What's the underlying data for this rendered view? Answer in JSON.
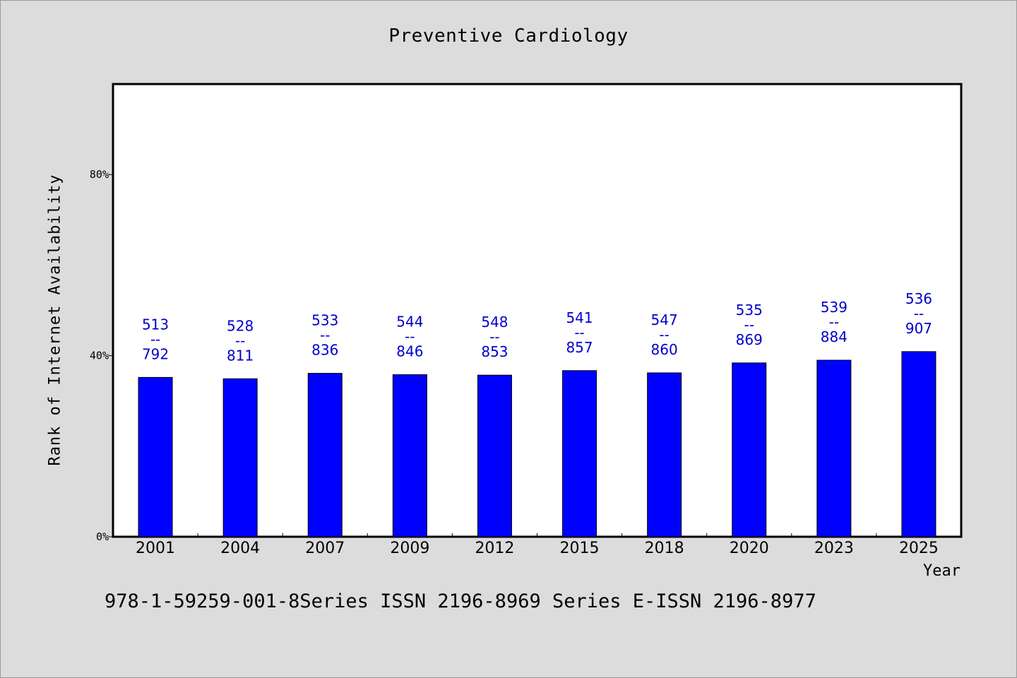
{
  "chart_data": {
    "type": "bar",
    "title": "Preventive Cardiology",
    "xlabel": "Year",
    "ylabel": "Rank of Internet Availability",
    "categories": [
      "2001",
      "2004",
      "2007",
      "2009",
      "2012",
      "2015",
      "2018",
      "2020",
      "2023",
      "2025"
    ],
    "values": [
      0.352,
      0.349,
      0.361,
      0.358,
      0.357,
      0.367,
      0.362,
      0.384,
      0.39,
      0.409
    ],
    "data_labels": [
      [
        "513",
        "--",
        "792"
      ],
      [
        "528",
        "--",
        "811"
      ],
      [
        "533",
        "--",
        "836"
      ],
      [
        "544",
        "--",
        "846"
      ],
      [
        "548",
        "--",
        "853"
      ],
      [
        "541",
        "--",
        "857"
      ],
      [
        "547",
        "--",
        "860"
      ],
      [
        "535",
        "--",
        "869"
      ],
      [
        "539",
        "--",
        "884"
      ],
      [
        "536",
        "--",
        "907"
      ]
    ],
    "ylim": [
      0,
      1.0
    ],
    "yticks": [
      0,
      0.4,
      0.8
    ],
    "ytick_labels": [
      "0%",
      "40%",
      "80%"
    ],
    "bar_color": "#0000ff",
    "label_color": "#0000cd",
    "grid": false,
    "legend": "none"
  },
  "footnote": "978-1-59259-001-8Series ISSN 2196-8969 Series E-ISSN 2196-8977"
}
